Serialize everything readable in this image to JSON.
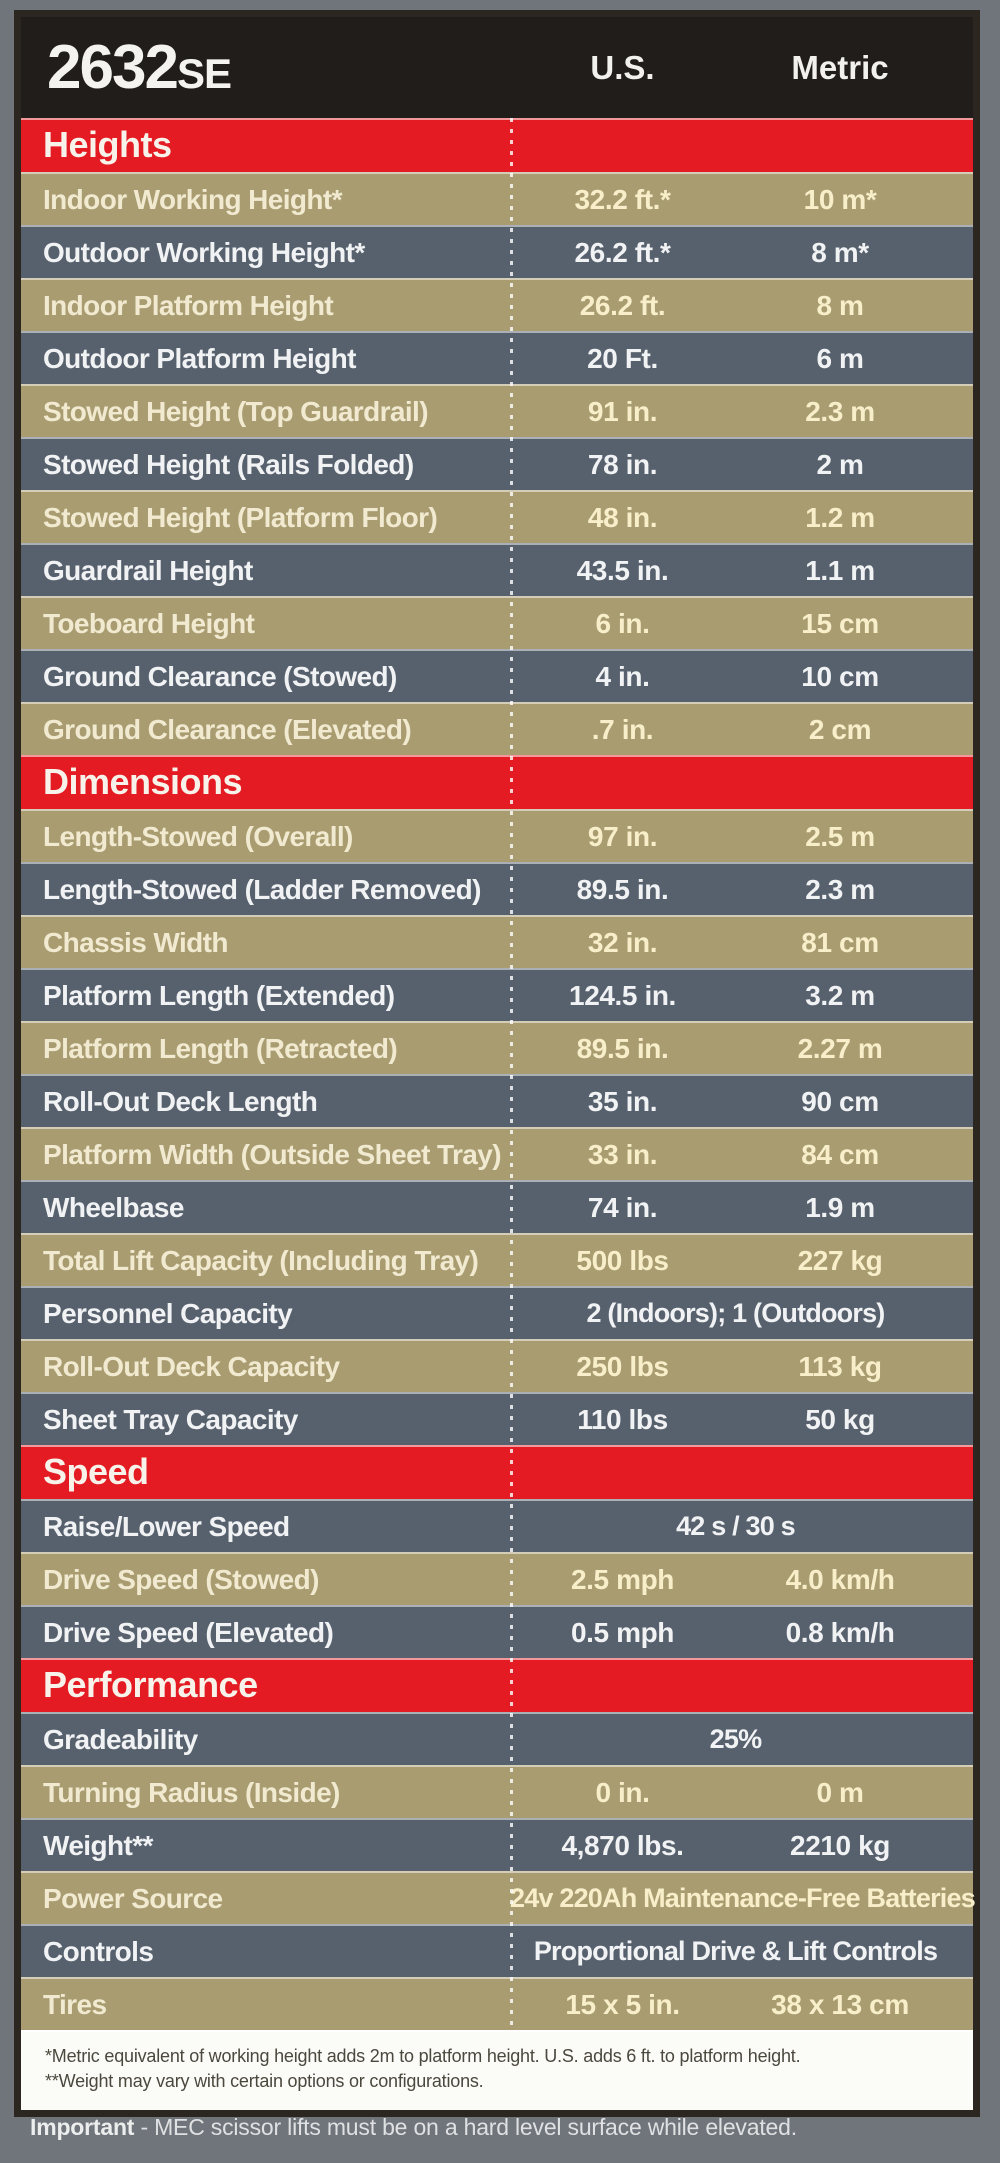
{
  "title": {
    "model": "2632",
    "suffix": "SE"
  },
  "columns": {
    "us": "U.S.",
    "metric": "Metric"
  },
  "colors": {
    "page_background": "#70747b",
    "header_background": "#211d1b",
    "section_bar_red": "#e41b22",
    "row_tan": "#a89c70",
    "row_slate": "#57616e",
    "footnote_background": "#fbfbf8",
    "table_border": "#2b2620",
    "value_text_tan": "#f8efca",
    "value_text_slate": "#f1f2f4"
  },
  "sections": [
    {
      "title": "Heights",
      "rows": [
        {
          "label": "Indoor Working Height*",
          "us": "32.2 ft.*",
          "metric": "10 m*",
          "shade": "tan"
        },
        {
          "label": "Outdoor Working Height*",
          "us": "26.2 ft.*",
          "metric": "8 m*",
          "shade": "slate"
        },
        {
          "label": "Indoor Platform Height",
          "us": "26.2 ft.",
          "metric": "8 m",
          "shade": "tan"
        },
        {
          "label": "Outdoor Platform Height",
          "us": "20 Ft.",
          "metric": "6 m",
          "shade": "slate"
        },
        {
          "label": "Stowed Height (Top Guardrail)",
          "us": "91 in.",
          "metric": "2.3 m",
          "shade": "tan"
        },
        {
          "label": "Stowed Height (Rails Folded)",
          "us": "78 in.",
          "metric": "2 m",
          "shade": "slate"
        },
        {
          "label": "Stowed Height (Platform Floor)",
          "us": "48 in.",
          "metric": "1.2 m",
          "shade": "tan"
        },
        {
          "label": "Guardrail Height",
          "us": "43.5 in.",
          "metric": "1.1 m",
          "shade": "slate"
        },
        {
          "label": "Toeboard Height",
          "us": "6 in.",
          "metric": "15 cm",
          "shade": "tan"
        },
        {
          "label": "Ground Clearance (Stowed)",
          "us": "4 in.",
          "metric": "10 cm",
          "shade": "slate"
        },
        {
          "label": "Ground Clearance (Elevated)",
          "us": ".7 in.",
          "metric": "2 cm",
          "shade": "tan"
        }
      ]
    },
    {
      "title": "Dimensions",
      "rows": [
        {
          "label": "Length-Stowed (Overall)",
          "us": "97 in.",
          "metric": "2.5 m",
          "shade": "tan"
        },
        {
          "label": "Length-Stowed (Ladder Removed)",
          "us": "89.5 in.",
          "metric": "2.3 m",
          "shade": "slate"
        },
        {
          "label": "Chassis Width",
          "us": "32 in.",
          "metric": "81 cm",
          "shade": "tan"
        },
        {
          "label": "Platform Length (Extended)",
          "us": "124.5 in.",
          "metric": "3.2 m",
          "shade": "slate"
        },
        {
          "label": "Platform Length (Retracted)",
          "us": "89.5 in.",
          "metric": "2.27 m",
          "shade": "tan"
        },
        {
          "label": "Roll-Out Deck Length",
          "us": "35 in.",
          "metric": "90 cm",
          "shade": "slate"
        },
        {
          "label": "Platform Width (Outside Sheet Tray)",
          "us": "33 in.",
          "metric": "84 cm",
          "shade": "tan"
        },
        {
          "label": "Wheelbase",
          "us": "74 in.",
          "metric": "1.9 m",
          "shade": "slate"
        },
        {
          "label": "Total Lift Capacity (Including Tray)",
          "us": "500 lbs",
          "metric": "227 kg",
          "shade": "tan"
        },
        {
          "label": "Personnel Capacity",
          "value": "2 (Indoors); 1 (Outdoors)",
          "shade": "slate"
        },
        {
          "label": "Roll-Out Deck Capacity",
          "us": "250 lbs",
          "metric": "113 kg",
          "shade": "tan"
        },
        {
          "label": "Sheet Tray Capacity",
          "us": "110 lbs",
          "metric": "50 kg",
          "shade": "slate"
        }
      ]
    },
    {
      "title": "Speed",
      "rows": [
        {
          "label": "Raise/Lower Speed",
          "value": "42 s / 30 s",
          "shade": "slate"
        },
        {
          "label": "Drive Speed (Stowed)",
          "us": "2.5 mph",
          "metric": "4.0 km/h",
          "shade": "tan"
        },
        {
          "label": "Drive Speed (Elevated)",
          "us": "0.5 mph",
          "metric": "0.8 km/h",
          "shade": "slate"
        }
      ]
    },
    {
      "title": "Performance",
      "rows": [
        {
          "label": "Gradeability",
          "value": "25%",
          "shade": "slate"
        },
        {
          "label": "Turning Radius (Inside)",
          "us": "0 in.",
          "metric": "0 m",
          "shade": "tan"
        },
        {
          "label": "Weight**",
          "us": "4,870 lbs.",
          "metric": "2210 kg",
          "shade": "slate"
        },
        {
          "label": "Power Source",
          "value": "24v 220Ah Maintenance-Free Batteries",
          "shade": "tan"
        },
        {
          "label": "Controls",
          "value": "Proportional Drive & Lift Controls",
          "shade": "slate"
        },
        {
          "label": "Tires",
          "us": "15 x 5 in.",
          "metric": "38 x 13 cm",
          "shade": "tan"
        }
      ]
    }
  ],
  "footnotes": [
    "*Metric equivalent of working height adds 2m to platform height. U.S. adds 6 ft. to platform height.",
    "**Weight may vary with certain options or configurations."
  ],
  "important": {
    "label": "Important",
    "text": "- MEC scissor lifts must be on a hard level surface while elevated."
  }
}
